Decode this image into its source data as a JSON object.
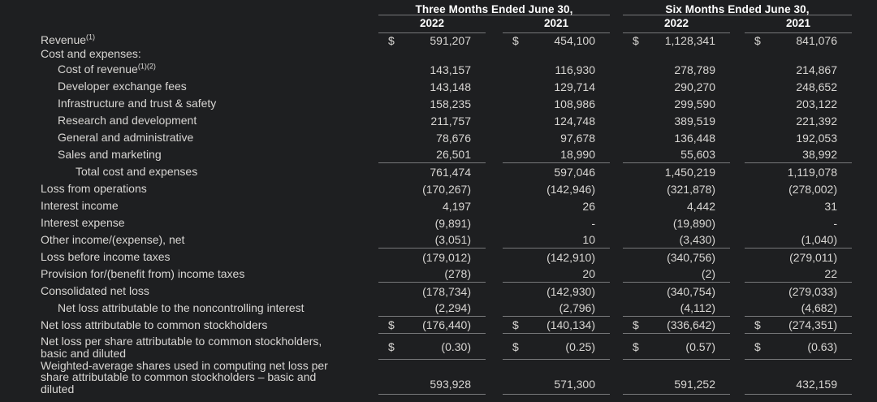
{
  "theme": {
    "background": "#1e1f21",
    "text": "#d8d6d3",
    "heading": "#ffffff",
    "rule": "#77787a"
  },
  "table": {
    "dollar_symbol": "$",
    "column_groups": [
      {
        "title": "Three Months Ended June 30,",
        "years": [
          "2022",
          "2021"
        ]
      },
      {
        "title": "Six Months Ended June 30,",
        "years": [
          "2022",
          "2021"
        ]
      }
    ],
    "rows": [
      {
        "label": "Revenue",
        "sup": "(1)",
        "indent": 0,
        "dollar": true,
        "tight": true,
        "values": [
          "591,207",
          "454,100",
          "1,128,341",
          "841,076"
        ]
      },
      {
        "label": "Cost and expenses:",
        "indent": 0,
        "tight": true,
        "values": null
      },
      {
        "label": "Cost of revenue",
        "sup": "(1)(2)",
        "indent": 1,
        "values": [
          "143,157",
          "116,930",
          "278,789",
          "214,867"
        ]
      },
      {
        "label": "Developer exchange fees",
        "indent": 1,
        "values": [
          "143,148",
          "129,714",
          "290,270",
          "248,652"
        ]
      },
      {
        "label": "Infrastructure and trust & safety",
        "indent": 1,
        "values": [
          "158,235",
          "108,986",
          "299,590",
          "203,122"
        ]
      },
      {
        "label": "Research and development",
        "indent": 1,
        "values": [
          "211,757",
          "124,748",
          "389,519",
          "221,392"
        ]
      },
      {
        "label": "General and administrative",
        "indent": 1,
        "values": [
          "78,676",
          "97,678",
          "136,448",
          "192,053"
        ]
      },
      {
        "label": "Sales and marketing",
        "indent": 1,
        "rule_below": true,
        "values": [
          "26,501",
          "18,990",
          "55,603",
          "38,992"
        ]
      },
      {
        "label": "Total cost and expenses",
        "indent": 2,
        "values": [
          "761,474",
          "597,046",
          "1,450,219",
          "1,119,078"
        ]
      },
      {
        "label": "Loss from operations",
        "indent": 0,
        "values": [
          "(170,267)",
          "(142,946)",
          "(321,878)",
          "(278,002)"
        ]
      },
      {
        "label": "Interest income",
        "indent": 0,
        "values": [
          "4,197",
          "26",
          "4,442",
          "31"
        ]
      },
      {
        "label": "Interest expense",
        "indent": 0,
        "values": [
          "(9,891)",
          "-",
          "(19,890)",
          "-"
        ]
      },
      {
        "label": "Other income/(expense), net",
        "indent": 0,
        "rule_below": true,
        "values": [
          "(3,051)",
          "10",
          "(3,430)",
          "(1,040)"
        ]
      },
      {
        "label": "Loss before income taxes",
        "indent": 0,
        "values": [
          "(179,012)",
          "(142,910)",
          "(340,756)",
          "(279,011)"
        ]
      },
      {
        "label": "Provision for/(benefit from) income taxes",
        "indent": 0,
        "rule_below": true,
        "values": [
          "(278)",
          "20",
          "(2)",
          "22"
        ]
      },
      {
        "label": "Consolidated net loss",
        "indent": 0,
        "values": [
          "(178,734)",
          "(142,930)",
          "(340,754)",
          "(279,033)"
        ]
      },
      {
        "label": "Net loss attributable to the noncontrolling interest",
        "indent": 1,
        "rule_below": true,
        "values": [
          "(2,294)",
          "(2,796)",
          "(4,112)",
          "(4,682)"
        ]
      },
      {
        "label": "Net loss attributable to common stockholders",
        "indent": 0,
        "dollar": true,
        "rule_below": true,
        "values": [
          "(176,440)",
          "(140,134)",
          "(336,642)",
          "(274,351)"
        ]
      },
      {
        "label": "Net loss per share attributable to common stockholders, basic and diluted",
        "indent": 0,
        "dollar": true,
        "rule_below": true,
        "wrap": 2,
        "values": [
          "(0.30)",
          "(0.25)",
          "(0.57)",
          "(0.63)"
        ]
      },
      {
        "label": "Weighted-average shares used in computing net loss per share attributable to common stockholders – basic and diluted",
        "indent": 0,
        "rule_below": true,
        "wrap": 3,
        "values": [
          "593,928",
          "571,300",
          "591,252",
          "432,159"
        ]
      }
    ]
  }
}
